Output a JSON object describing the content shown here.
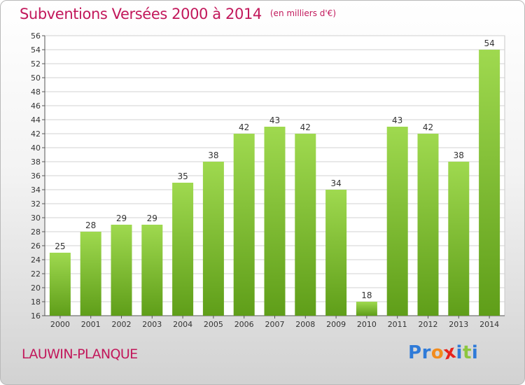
{
  "header": {
    "title": "Subventions Versées 2000 à 2014",
    "unit": "(en milliers d'€)"
  },
  "footer": {
    "commune": "LAUWIN-PLANQUE",
    "logo_text": "Proxiti"
  },
  "colors": {
    "title": "#c2185b",
    "bar_top": "#9fd94f",
    "bar_bottom": "#5f9e19",
    "grid": "#d0d0d0",
    "logo_letters": [
      "#2f7bd8",
      "#2f7bd8",
      "#f28c1e",
      "#e8231b",
      "#2f7bd8",
      "#8cc63f",
      "#2f7bd8"
    ]
  },
  "chart_data": {
    "type": "bar",
    "title": "Subventions Versées 2000 à 2014",
    "categories": [
      "2000",
      "2001",
      "2002",
      "2003",
      "2004",
      "2005",
      "2006",
      "2007",
      "2008",
      "2009",
      "2010",
      "2011",
      "2012",
      "2013",
      "2014"
    ],
    "values": [
      25,
      28,
      29,
      29,
      35,
      38,
      42,
      43,
      42,
      34,
      18,
      43,
      42,
      38,
      54
    ],
    "ylim": [
      16,
      56
    ],
    "yticks": [
      16,
      18,
      20,
      22,
      24,
      26,
      28,
      30,
      32,
      34,
      36,
      38,
      40,
      42,
      44,
      46,
      48,
      50,
      52,
      54,
      56
    ],
    "xlabel": "",
    "ylabel": "",
    "grid": true,
    "data_labels": true
  }
}
